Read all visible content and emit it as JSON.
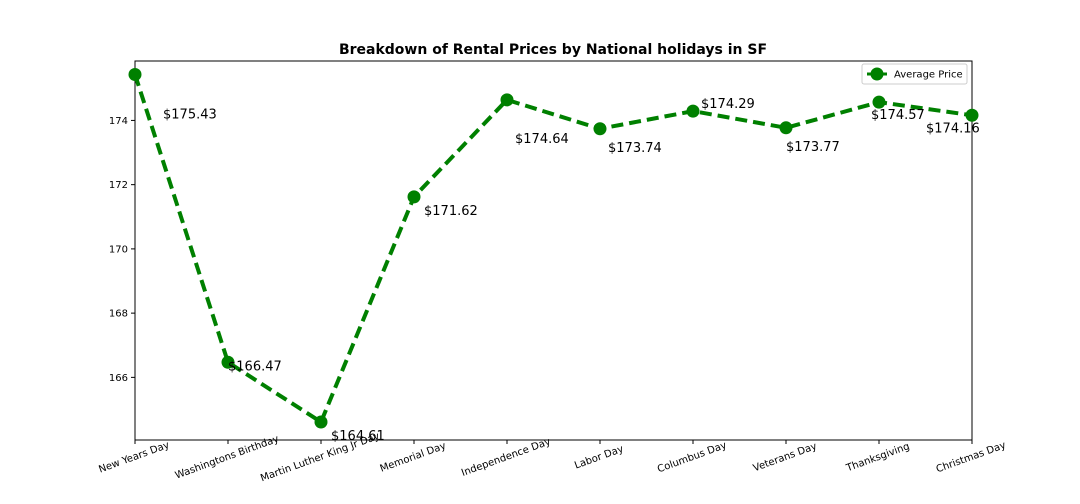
{
  "chart_data": {
    "type": "line",
    "title": "Breakdown of Rental Prices by National holidays in SF",
    "xlabel": "",
    "ylabel": "",
    "categories": [
      "New Years Day",
      "Washingtons Birthday",
      "Martin Luther King Jr Day",
      "Memorial Day",
      "Independence Day",
      "Labor Day",
      "Columbus Day",
      "Veterans Day",
      "Thanksgiving",
      "Christmas Day"
    ],
    "series": [
      {
        "name": "Average Price",
        "values": [
          175.43,
          166.47,
          164.61,
          171.62,
          174.64,
          173.74,
          174.29,
          173.77,
          174.57,
          174.16
        ],
        "color": "#008000",
        "line_style": "dashed",
        "marker": "circle"
      }
    ],
    "data_labels": [
      "$175.43",
      "$166.47",
      "$164.61",
      "$171.62",
      "$174.64",
      "$173.74",
      "$174.29",
      "$173.77",
      "$174.57",
      "$174.16"
    ],
    "yticks": [
      166,
      168,
      170,
      172,
      174
    ],
    "ylim": [
      164.05,
      175.85
    ],
    "grid": false,
    "legend_position": "upper right"
  }
}
